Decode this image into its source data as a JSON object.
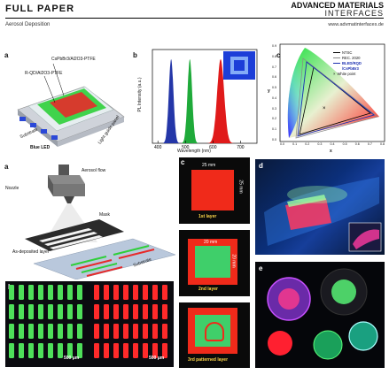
{
  "header": {
    "title": "FULL PAPER",
    "subtitle": "Aerosol Deposition",
    "logo_line1": "ADVANCED MATERIALS",
    "logo_line2": "INTERFACES",
    "url": "www.advmatinterfaces.de"
  },
  "panel_a_top": {
    "label": "a",
    "layer1": "CsPbBr3/Al2O3-PTFE",
    "layer2": "R-QD/Al2O3-PTFE",
    "substrate": "Substrate",
    "led": "Blue LED",
    "light_guide": "Light guide panel"
  },
  "panel_b_spectrum": {
    "label": "b",
    "ylabel": "PL Intensity (a.u.)",
    "xlabel": "Wavelength (nm)",
    "xticks": [
      "400",
      "500",
      "600",
      "700"
    ]
  },
  "panel_c_cie": {
    "label": "c",
    "legend": [
      "NTSC",
      "REC. 2020",
      "BLED/RQD",
      "/CsPbBr3",
      "White point"
    ],
    "xlabel": "x",
    "ylabel": "y",
    "xticks": [
      "0.0",
      "0.1",
      "0.2",
      "0.3",
      "0.4",
      "0.5",
      "0.6",
      "0.7",
      "0.8"
    ],
    "yticks": [
      "0.0",
      "0.1",
      "0.2",
      "0.3",
      "0.4",
      "0.5",
      "0.6",
      "0.7",
      "0.8",
      "0.9"
    ]
  },
  "panel_a_bottom": {
    "label": "a",
    "aerosol": "Aerosol flow",
    "nozzle": "Nozzle",
    "mask": "Mask",
    "layer": "As-deposited layer",
    "substrate": "Substrate"
  },
  "panel_b_micro": {
    "label": "b",
    "scale_left": "500 μm",
    "scale_right": "500 μm"
  },
  "panel_c_layers": {
    "label": "c",
    "dim1_w": "25 mm",
    "dim1_h": "25 mm",
    "layer1": "1st layer",
    "dim2_w": "20 mm",
    "dim2_h": "20 mm",
    "layer2": "2nd layer",
    "layer3": "3rd patterned layer"
  },
  "panel_d": {
    "label": "d"
  },
  "panel_e": {
    "label": "e"
  },
  "chart_data": {
    "type": "line",
    "title": "",
    "xlabel": "Wavelength (nm)",
    "ylabel": "PL Intensity (a.u.)",
    "xlim": [
      380,
      760
    ],
    "series": [
      {
        "color": "#2436a8",
        "peak_nm": 448,
        "fwhm_nm": 20
      },
      {
        "color": "#1faa3a",
        "peak_nm": 516,
        "fwhm_nm": 20
      },
      {
        "color": "#e01a1a",
        "peak_nm": 628,
        "fwhm_nm": 30
      }
    ]
  }
}
